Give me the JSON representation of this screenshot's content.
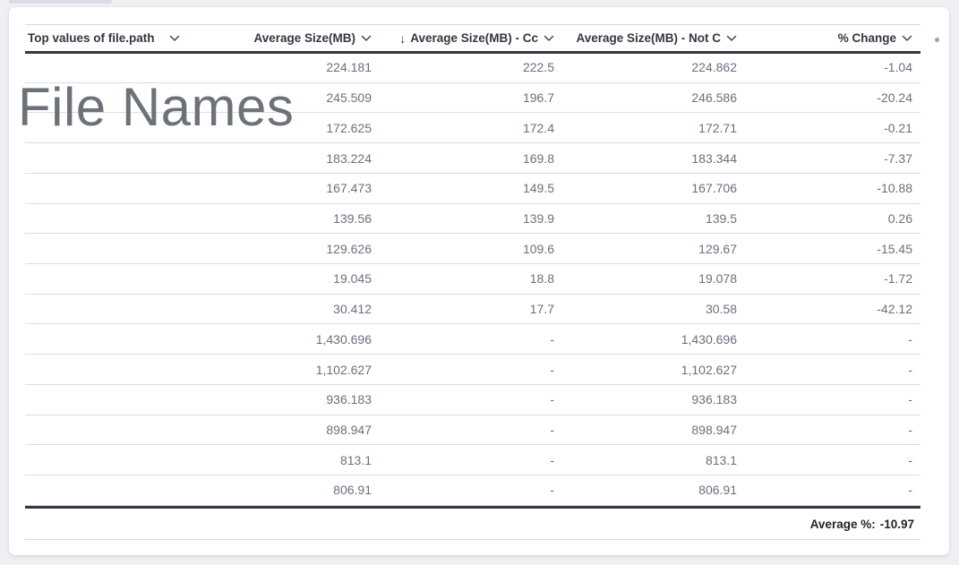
{
  "panel": {
    "watermark": "File Names"
  },
  "icons": {
    "sort_descending": "↓"
  },
  "table": {
    "columns": [
      {
        "label": "Top values of file.path",
        "align": "left",
        "sort_icon": false
      },
      {
        "label": "Average Size(MB)",
        "align": "right",
        "sort_icon": false
      },
      {
        "label": "Average Size(MB) - Cc",
        "align": "right",
        "sort_icon": true
      },
      {
        "label": "Average Size(MB) - Not C",
        "align": "right",
        "sort_icon": false
      },
      {
        "label": "% Change",
        "align": "right",
        "sort_icon": false
      }
    ],
    "rows": [
      [
        "",
        "224.181",
        "222.5",
        "224.862",
        "-1.04"
      ],
      [
        "",
        "245.509",
        "196.7",
        "246.586",
        "-20.24"
      ],
      [
        "",
        "172.625",
        "172.4",
        "172.71",
        "-0.21"
      ],
      [
        "",
        "183.224",
        "169.8",
        "183.344",
        "-7.37"
      ],
      [
        "",
        "167.473",
        "149.5",
        "167.706",
        "-10.88"
      ],
      [
        "",
        "139.56",
        "139.9",
        "139.5",
        "0.26"
      ],
      [
        "",
        "129.626",
        "109.6",
        "129.67",
        "-15.45"
      ],
      [
        "",
        "19.045",
        "18.8",
        "19.078",
        "-1.72"
      ],
      [
        "",
        "30.412",
        "17.7",
        "30.58",
        "-42.12"
      ],
      [
        "",
        "1,430.696",
        "-",
        "1,430.696",
        "-"
      ],
      [
        "",
        "1,102.627",
        "-",
        "1,102.627",
        "-"
      ],
      [
        "",
        "936.183",
        "-",
        "936.183",
        "-"
      ],
      [
        "",
        "898.947",
        "-",
        "898.947",
        "-"
      ],
      [
        "",
        "813.1",
        "-",
        "813.1",
        "-"
      ],
      [
        "",
        "806.91",
        "-",
        "806.91",
        "-"
      ]
    ],
    "footer": {
      "label": "Average %:",
      "value": "-10.97"
    }
  },
  "colors": {
    "page_bg": "#EEF0F3",
    "panel_bg": "#FFFFFF",
    "header_text": "#343741",
    "value_text": "#69707D",
    "row_divider": "#D7DDE9",
    "strong_line": "#33373F",
    "watermark_text": "#6D7278",
    "footer_text": "#21242B"
  }
}
